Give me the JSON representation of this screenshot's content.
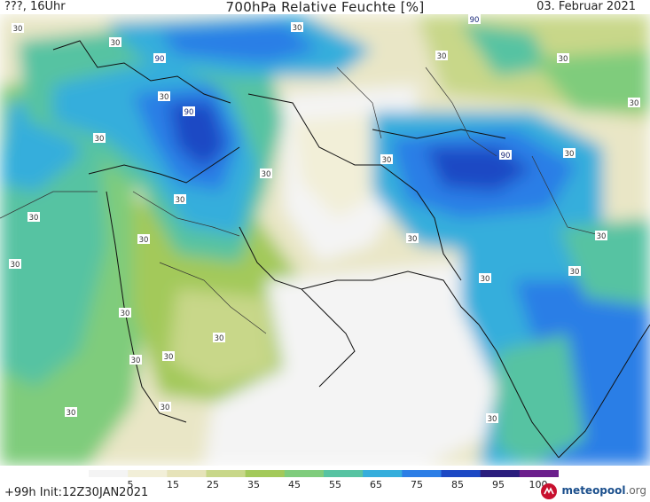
{
  "header": {
    "left": "???, 16Uhr",
    "title": "700hPa Relative Feuchte [%]",
    "date": "03. Februar 2021"
  },
  "footer": {
    "init": "+99h Init:12Z30JAN2021",
    "brand_name": "meteopool",
    "brand_suffix": ".org"
  },
  "colorbar": {
    "ticks": [
      "5",
      "15",
      "25",
      "35",
      "45",
      "55",
      "65",
      "75",
      "85",
      "95",
      "100"
    ],
    "colors": [
      "#f4f4f4",
      "#f2efd8",
      "#e6e3b9",
      "#c8d789",
      "#a3c95a",
      "#7fcc7c",
      "#57c3a2",
      "#35aedc",
      "#2c7ee6",
      "#1c48c4",
      "#2a1d7d",
      "#6b1f8c"
    ]
  },
  "map": {
    "contour_labels": [
      {
        "text": "30"
      },
      {
        "text": "30"
      },
      {
        "text": "90"
      },
      {
        "text": "30"
      },
      {
        "text": "90"
      },
      {
        "text": "30"
      },
      {
        "text": "90"
      },
      {
        "text": "30"
      },
      {
        "text": "90"
      },
      {
        "text": "30"
      },
      {
        "text": "30"
      },
      {
        "text": "30"
      },
      {
        "text": "30"
      },
      {
        "text": "30"
      },
      {
        "text": "30"
      },
      {
        "text": "30"
      },
      {
        "text": "30"
      },
      {
        "text": "30"
      },
      {
        "text": "30"
      },
      {
        "text": "30"
      },
      {
        "text": "30"
      },
      {
        "text": "30"
      },
      {
        "text": "30"
      },
      {
        "text": "30"
      },
      {
        "text": "30"
      },
      {
        "text": "30"
      },
      {
        "text": "30"
      },
      {
        "text": "30"
      },
      {
        "text": "30"
      },
      {
        "text": "30"
      }
    ]
  }
}
